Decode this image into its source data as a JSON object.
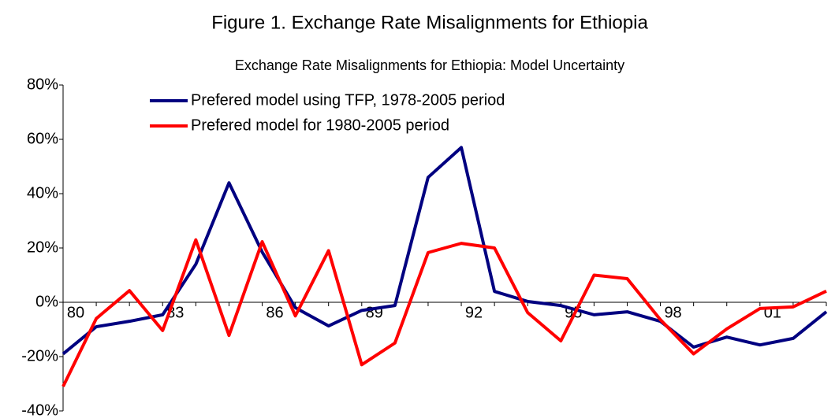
{
  "chart_data": {
    "type": "line",
    "title": "Figure 1. Exchange Rate Misalignments for Ethiopia",
    "subtitle": "Exchange Rate Misalignments for Ethiopia: Model Uncertainty",
    "categories": [
      "80",
      null,
      null,
      "83",
      null,
      null,
      "86",
      null,
      null,
      "89",
      null,
      null,
      "92",
      null,
      null,
      "95",
      null,
      null,
      "98",
      null,
      null,
      "01",
      null,
      null
    ],
    "series": [
      {
        "name": "Prefered model using TFP, 1978-2005 period",
        "color": "#000080",
        "values": [
          -19,
          -9,
          -7,
          -4.6,
          14,
          44,
          18.5,
          -2,
          -8.7,
          -3,
          -1.2,
          46,
          57,
          4,
          0.3,
          -1.2,
          -4.6,
          -3.5,
          -7,
          -16.5,
          -12.8,
          -15.7,
          -13.3,
          -3.5
        ]
      },
      {
        "name": "Prefered model for 1980-2005 period",
        "color": "#ff0000",
        "values": [
          -31,
          -6,
          4.3,
          -10.4,
          23,
          -12.2,
          22.3,
          -5,
          19,
          -23,
          -15,
          18.3,
          21.7,
          20,
          -3.8,
          -14.2,
          10,
          8.7,
          -6.4,
          -19,
          -9.8,
          -2.3,
          -1.7,
          4.1
        ]
      }
    ],
    "ylim": [
      -40,
      80
    ],
    "yticks": [
      {
        "value": -40,
        "label": "-40%"
      },
      {
        "value": -20,
        "label": "-20%"
      },
      {
        "value": 0,
        "label": "0%"
      },
      {
        "value": 20,
        "label": "20%"
      },
      {
        "value": 40,
        "label": "40%"
      },
      {
        "value": 60,
        "label": "60%"
      },
      {
        "value": 80,
        "label": "80%"
      }
    ],
    "legend": "upper-left"
  }
}
